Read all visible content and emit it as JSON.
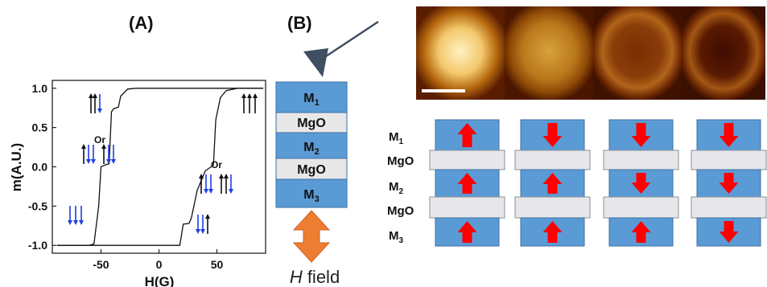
{
  "panel_a": {
    "label": "(A)",
    "chart_data": {
      "type": "line",
      "xlabel": "H(G)",
      "ylabel": "m(A.U.)",
      "xlim": [
        -92,
        92
      ],
      "ylim": [
        -1.1,
        1.1
      ],
      "x_ticks": [
        "-50",
        "0",
        "50"
      ],
      "x_tick_values": [
        -50,
        0,
        50
      ],
      "y_ticks": [
        "1.0",
        "0.5",
        "0.0",
        "-0.5",
        "-1.0"
      ],
      "y_tick_values": [
        1.0,
        0.5,
        0.0,
        -0.5,
        -1.0
      ],
      "grid": false,
      "series": [
        {
          "points": [
            [
              -88,
              -1.0
            ],
            [
              -60,
              -1.0
            ],
            [
              -56,
              -0.98
            ],
            [
              -52,
              -0.5
            ],
            [
              -50,
              0.0
            ],
            [
              -47,
              0.02
            ],
            [
              -43,
              0.04
            ],
            [
              -41,
              0.7
            ],
            [
              -39,
              0.74
            ],
            [
              -35,
              0.76
            ],
            [
              -33,
              0.9
            ],
            [
              -27,
              0.99
            ],
            [
              -20,
              1.0
            ],
            [
              90,
              1.0
            ]
          ]
        },
        {
          "points": [
            [
              -88,
              -1.0
            ],
            [
              18,
              -1.0
            ],
            [
              21,
              -0.73
            ],
            [
              26,
              -0.72
            ],
            [
              28,
              -0.65
            ],
            [
              33,
              -0.3
            ],
            [
              40,
              -0.05
            ],
            [
              45,
              0.0
            ],
            [
              47,
              0.02
            ],
            [
              49,
              0.6
            ],
            [
              53,
              0.88
            ],
            [
              58,
              0.97
            ],
            [
              68,
              1.0
            ],
            [
              90,
              1.0
            ]
          ]
        }
      ]
    },
    "annotations": [
      {
        "text": "Or"
      },
      {
        "text": "Or"
      }
    ]
  },
  "panel_b": {
    "label": "(B)",
    "stack_layers": [
      "M",
      "MgO",
      "M",
      "MgO",
      "M"
    ],
    "stack_subscripts": [
      "1",
      "",
      "2",
      "",
      "3"
    ],
    "field_label_italic": "H",
    "field_label_rest": " field",
    "side_labels": [
      "M",
      "MgO",
      "M",
      "MgO",
      "M"
    ],
    "side_subscripts": [
      "1",
      "",
      "2",
      "",
      "3"
    ],
    "columns": [
      {
        "arrows": [
          "up",
          "up",
          "up"
        ]
      },
      {
        "arrows": [
          "down",
          "up",
          "up"
        ]
      },
      {
        "arrows": [
          "down",
          "down",
          "up"
        ]
      },
      {
        "arrows": [
          "down",
          "down",
          "down"
        ]
      }
    ],
    "micrograph_frames": [
      {
        "intensity": 1.0
      },
      {
        "intensity": 0.72
      },
      {
        "intensity": 0.38
      },
      {
        "intensity": 0.3
      }
    ]
  },
  "colors": {
    "layer_blue": "#5b9bd5",
    "layer_border": "#3c6f9e",
    "mgo_gray": "#e7e7ea",
    "arrow_red": "#ff0000",
    "field_orange": "#ed7d31",
    "spin_blue": "#1f3fe0",
    "spin_black": "#111111"
  }
}
